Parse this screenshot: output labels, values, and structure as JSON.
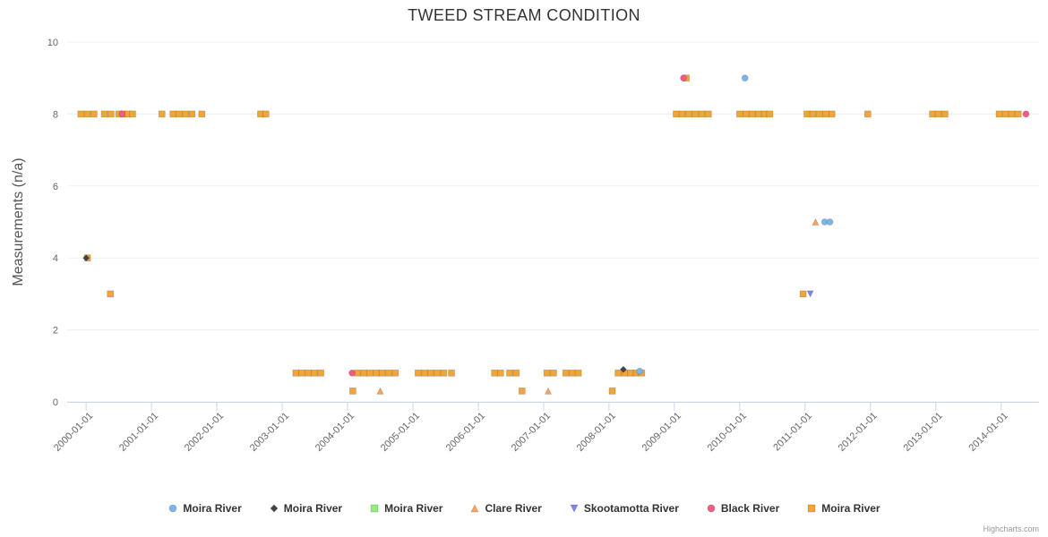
{
  "chart_data": {
    "type": "scatter",
    "title": "TWEED STREAM CONDITION",
    "ylabel": "Measurements (n/a)",
    "xlabel": "",
    "ylim": [
      0,
      10
    ],
    "xlim": [
      1999.71,
      2014.58
    ],
    "grid": "horizontal-faint",
    "legend_position": "bottom",
    "credit": "Highcharts.com",
    "yticks": [
      {
        "value": 0,
        "label": "0"
      },
      {
        "value": 2,
        "label": "2"
      },
      {
        "value": 4,
        "label": "4"
      },
      {
        "value": 6,
        "label": "6"
      },
      {
        "value": 8,
        "label": "8"
      },
      {
        "value": 10,
        "label": "10"
      }
    ],
    "xticks": [
      {
        "value": 2000,
        "label": "2000-01-01"
      },
      {
        "value": 2001,
        "label": "2001-01-01"
      },
      {
        "value": 2002,
        "label": "2002-01-01"
      },
      {
        "value": 2003,
        "label": "2003-01-01"
      },
      {
        "value": 2004,
        "label": "2004-01-01"
      },
      {
        "value": 2005,
        "label": "2005-01-01"
      },
      {
        "value": 2006,
        "label": "2006-01-01"
      },
      {
        "value": 2007,
        "label": "2007-01-01"
      },
      {
        "value": 2008,
        "label": "2008-01-01"
      },
      {
        "value": 2009,
        "label": "2009-01-01"
      },
      {
        "value": 2010,
        "label": "2010-01-01"
      },
      {
        "value": 2011,
        "label": "2011-01-01"
      },
      {
        "value": 2012,
        "label": "2012-01-01"
      },
      {
        "value": 2013,
        "label": "2013-01-01"
      },
      {
        "value": 2014,
        "label": "2014-01-01"
      }
    ],
    "series": [
      {
        "name": "Moira River",
        "marker": "circle",
        "color": "#7cb5ec",
        "points": [
          [
            2010.08,
            9
          ],
          [
            2011.3,
            5
          ],
          [
            2011.38,
            5
          ],
          [
            2008.47,
            0.85
          ]
        ]
      },
      {
        "name": "Moira River",
        "marker": "diamond",
        "color": "#434348",
        "points": [
          [
            2000.0,
            4
          ],
          [
            2008.22,
            0.9
          ]
        ]
      },
      {
        "name": "Moira River",
        "marker": "square",
        "color": "#90ed7d",
        "points": []
      },
      {
        "name": "Clare River",
        "marker": "triangle",
        "color": "#f7a35c",
        "points": [
          [
            2011.16,
            5
          ],
          [
            2004.5,
            0.3
          ],
          [
            2007.07,
            0.3
          ]
        ]
      },
      {
        "name": "Skootamotta River",
        "marker": "triangle-down",
        "color": "#8085e9",
        "points": [
          [
            2011.08,
            3
          ]
        ]
      },
      {
        "name": "Black River",
        "marker": "circle",
        "color": "#f15c80",
        "points": [
          [
            2000.55,
            8
          ],
          [
            2009.14,
            9
          ],
          [
            2004.07,
            0.8
          ],
          [
            2014.38,
            8
          ]
        ]
      },
      {
        "name": "Moira River",
        "marker": "square",
        "color": "#f0a43c",
        "points": [
          [
            1999.92,
            8
          ],
          [
            2000.02,
            8
          ],
          [
            2000.12,
            8
          ],
          [
            2000.28,
            8
          ],
          [
            2000.38,
            8
          ],
          [
            2000.5,
            8
          ],
          [
            2000.57,
            8
          ],
          [
            2000.64,
            8
          ],
          [
            2000.71,
            8
          ],
          [
            2001.16,
            8
          ],
          [
            2001.33,
            8
          ],
          [
            2001.42,
            8
          ],
          [
            2001.52,
            8
          ],
          [
            2001.62,
            8
          ],
          [
            2001.77,
            8
          ],
          [
            2002.67,
            8
          ],
          [
            2002.75,
            8
          ],
          [
            2009.03,
            8
          ],
          [
            2009.12,
            8
          ],
          [
            2009.22,
            8
          ],
          [
            2009.32,
            8
          ],
          [
            2009.42,
            8
          ],
          [
            2009.52,
            8
          ],
          [
            2010.0,
            8
          ],
          [
            2010.1,
            8
          ],
          [
            2010.19,
            8
          ],
          [
            2010.29,
            8
          ],
          [
            2010.38,
            8
          ],
          [
            2010.46,
            8
          ],
          [
            2011.03,
            8
          ],
          [
            2011.12,
            8
          ],
          [
            2011.22,
            8
          ],
          [
            2011.32,
            8
          ],
          [
            2011.41,
            8
          ],
          [
            2011.96,
            8
          ],
          [
            2012.95,
            8
          ],
          [
            2013.04,
            8
          ],
          [
            2013.14,
            8
          ],
          [
            2013.97,
            8
          ],
          [
            2014.07,
            8
          ],
          [
            2014.16,
            8
          ],
          [
            2014.26,
            8
          ],
          [
            2009.18,
            9
          ],
          [
            2000.02,
            4
          ],
          [
            2000.37,
            3
          ],
          [
            2010.97,
            3
          ],
          [
            2003.21,
            0.8
          ],
          [
            2003.3,
            0.8
          ],
          [
            2003.4,
            0.8
          ],
          [
            2003.49,
            0.8
          ],
          [
            2003.59,
            0.8
          ],
          [
            2004.15,
            0.8
          ],
          [
            2004.25,
            0.8
          ],
          [
            2004.34,
            0.8
          ],
          [
            2004.44,
            0.8
          ],
          [
            2004.53,
            0.8
          ],
          [
            2004.63,
            0.8
          ],
          [
            2004.73,
            0.8
          ],
          [
            2005.08,
            0.8
          ],
          [
            2005.18,
            0.8
          ],
          [
            2005.27,
            0.8
          ],
          [
            2005.37,
            0.8
          ],
          [
            2005.47,
            0.8
          ],
          [
            2005.59,
            0.8
          ],
          [
            2006.25,
            0.8
          ],
          [
            2006.34,
            0.8
          ],
          [
            2006.48,
            0.8
          ],
          [
            2006.58,
            0.8
          ],
          [
            2007.05,
            0.8
          ],
          [
            2007.15,
            0.8
          ],
          [
            2007.34,
            0.8
          ],
          [
            2007.44,
            0.8
          ],
          [
            2007.53,
            0.8
          ],
          [
            2008.14,
            0.8
          ],
          [
            2008.24,
            0.8
          ],
          [
            2008.33,
            0.8
          ],
          [
            2008.42,
            0.8
          ],
          [
            2008.5,
            0.8
          ],
          [
            2004.08,
            0.3
          ],
          [
            2006.67,
            0.3
          ],
          [
            2008.05,
            0.3
          ]
        ]
      }
    ]
  }
}
